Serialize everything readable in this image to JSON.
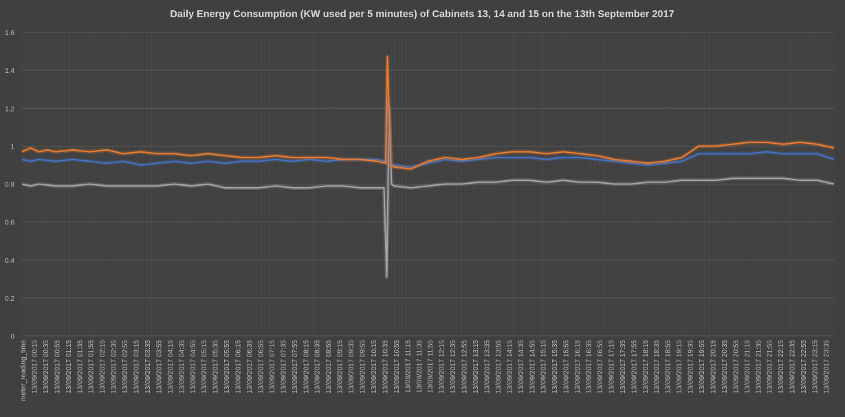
{
  "chart_data": {
    "type": "line",
    "title": "Daily Energy Consumption (KW used per 5 minutes) of Cabinets 13, 14 and 15 on the 13th September 2017",
    "xlabel": "",
    "ylabel": "",
    "ylim": [
      0,
      1.6
    ],
    "y_ticks": [
      "0",
      "0.2",
      "0.4",
      "0.6",
      "0.8",
      "1",
      "1.2",
      "1.4",
      "1.6"
    ],
    "grid": "on",
    "legend": "none",
    "x_first_label": "meter_reading_time",
    "x_tick_labels": [
      "13/09/2017 00:15",
      "13/09/2017 00:35",
      "13/09/2017 00:55",
      "13/09/2017 01:15",
      "13/09/2017 01:35",
      "13/09/2017 01:55",
      "13/09/2017 02:15",
      "13/09/2017 02:35",
      "13/09/2017 02:55",
      "13/09/2017 03:15",
      "13/09/2017 03:35",
      "13/09/2017 03:55",
      "13/09/2017 04:15",
      "13/09/2017 04:35",
      "13/09/2017 04:55",
      "13/09/2017 05:15",
      "13/09/2017 05:35",
      "13/09/2017 05:55",
      "13/09/2017 06:15",
      "13/09/2017 06:35",
      "13/09/2017 06:55",
      "13/09/2017 07:15",
      "13/09/2017 07:35",
      "13/09/2017 07:55",
      "13/09/2017 08:15",
      "13/09/2017 08:35",
      "13/09/2017 08:55",
      "13/09/2017 09:15",
      "13/09/2017 09:35",
      "13/09/2017 09:55",
      "13/09/2017 10:15",
      "13/09/2017 10:35",
      "13/09/2017 10:55",
      "13/09/2017 11:15",
      "13/09/2017 11:35",
      "13/09/2017 11:55",
      "13/09/2017 12:15",
      "13/09/2017 12:35",
      "13/09/2017 12:55",
      "13/09/2017 13:15",
      "13/09/2017 13:35",
      "13/09/2017 13:55",
      "13/09/2017 14:15",
      "13/09/2017 14:35",
      "13/09/2017 14:55",
      "13/09/2017 15:15",
      "13/09/2017 15:35",
      "13/09/2017 15:55",
      "13/09/2017 16:15",
      "13/09/2017 16:35",
      "13/09/2017 16:55",
      "13/09/2017 17:15",
      "13/09/2017 17:35",
      "13/09/2017 17:55",
      "13/09/2017 18:15",
      "13/09/2017 18:35",
      "13/09/2017 18:55",
      "13/09/2017 19:15",
      "13/09/2017 19:35",
      "13/09/2017 19:55",
      "13/09/2017 20:15",
      "13/09/2017 20:35",
      "13/09/2017 20:55",
      "13/09/2017 21:15",
      "13/09/2017 21:35",
      "13/09/2017 21:55",
      "13/09/2017 22:15",
      "13/09/2017 22:35",
      "13/09/2017 22:55",
      "13/09/2017 23:15",
      "13/09/2017 23:35"
    ],
    "x_time_hours": [
      0,
      24
    ],
    "series": [
      {
        "color": "#ED7D31",
        "points": [
          [
            0,
            0.97
          ],
          [
            0.25,
            0.99
          ],
          [
            0.5,
            0.97
          ],
          [
            0.75,
            0.98
          ],
          [
            1,
            0.97
          ],
          [
            1.5,
            0.98
          ],
          [
            2,
            0.97
          ],
          [
            2.5,
            0.98
          ],
          [
            3,
            0.96
          ],
          [
            3.5,
            0.97
          ],
          [
            4,
            0.96
          ],
          [
            4.5,
            0.96
          ],
          [
            5,
            0.95
          ],
          [
            5.5,
            0.96
          ],
          [
            6,
            0.95
          ],
          [
            6.5,
            0.94
          ],
          [
            7,
            0.94
          ],
          [
            7.5,
            0.95
          ],
          [
            8,
            0.94
          ],
          [
            8.5,
            0.94
          ],
          [
            9,
            0.94
          ],
          [
            9.5,
            0.93
          ],
          [
            10,
            0.93
          ],
          [
            10.5,
            0.92
          ],
          [
            10.75,
            0.91
          ],
          [
            10.8,
            1.47
          ],
          [
            10.9,
            0.9
          ],
          [
            11,
            0.89
          ],
          [
            11.5,
            0.88
          ],
          [
            12,
            0.92
          ],
          [
            12.5,
            0.94
          ],
          [
            13,
            0.93
          ],
          [
            13.5,
            0.94
          ],
          [
            14,
            0.96
          ],
          [
            14.5,
            0.97
          ],
          [
            15,
            0.97
          ],
          [
            15.5,
            0.96
          ],
          [
            16,
            0.97
          ],
          [
            16.5,
            0.96
          ],
          [
            17,
            0.95
          ],
          [
            17.5,
            0.93
          ],
          [
            18,
            0.92
          ],
          [
            18.5,
            0.91
          ],
          [
            19,
            0.92
          ],
          [
            19.5,
            0.94
          ],
          [
            20,
            1.0
          ],
          [
            20.5,
            1.0
          ],
          [
            21,
            1.01
          ],
          [
            21.5,
            1.02
          ],
          [
            22,
            1.02
          ],
          [
            22.5,
            1.01
          ],
          [
            23,
            1.02
          ],
          [
            23.5,
            1.01
          ],
          [
            24,
            0.99
          ]
        ]
      },
      {
        "color": "#4472C4",
        "points": [
          [
            0,
            0.93
          ],
          [
            0.25,
            0.92
          ],
          [
            0.5,
            0.93
          ],
          [
            1,
            0.92
          ],
          [
            1.5,
            0.93
          ],
          [
            2,
            0.92
          ],
          [
            2.5,
            0.91
          ],
          [
            3,
            0.92
          ],
          [
            3.5,
            0.9
          ],
          [
            4,
            0.91
          ],
          [
            4.5,
            0.92
          ],
          [
            5,
            0.91
          ],
          [
            5.5,
            0.92
          ],
          [
            6,
            0.91
          ],
          [
            6.5,
            0.92
          ],
          [
            7,
            0.92
          ],
          [
            7.5,
            0.93
          ],
          [
            8,
            0.92
          ],
          [
            8.5,
            0.93
          ],
          [
            9,
            0.92
          ],
          [
            9.5,
            0.93
          ],
          [
            10,
            0.93
          ],
          [
            10.5,
            0.93
          ],
          [
            10.75,
            0.92
          ],
          [
            10.8,
            1.25
          ],
          [
            10.9,
            0.9
          ],
          [
            11,
            0.9
          ],
          [
            11.5,
            0.89
          ],
          [
            12,
            0.91
          ],
          [
            12.5,
            0.93
          ],
          [
            13,
            0.92
          ],
          [
            13.5,
            0.93
          ],
          [
            14,
            0.94
          ],
          [
            14.5,
            0.94
          ],
          [
            15,
            0.94
          ],
          [
            15.5,
            0.93
          ],
          [
            16,
            0.94
          ],
          [
            16.5,
            0.94
          ],
          [
            17,
            0.93
          ],
          [
            17.5,
            0.92
          ],
          [
            18,
            0.91
          ],
          [
            18.5,
            0.9
          ],
          [
            19,
            0.91
          ],
          [
            19.5,
            0.92
          ],
          [
            20,
            0.96
          ],
          [
            20.5,
            0.96
          ],
          [
            21,
            0.96
          ],
          [
            21.5,
            0.96
          ],
          [
            22,
            0.97
          ],
          [
            22.5,
            0.96
          ],
          [
            23,
            0.96
          ],
          [
            23.5,
            0.96
          ],
          [
            24,
            0.93
          ]
        ]
      },
      {
        "color": "#A5A5A5",
        "points": [
          [
            0,
            0.8
          ],
          [
            0.25,
            0.79
          ],
          [
            0.5,
            0.8
          ],
          [
            1,
            0.79
          ],
          [
            1.5,
            0.79
          ],
          [
            2,
            0.8
          ],
          [
            2.5,
            0.79
          ],
          [
            3,
            0.79
          ],
          [
            3.5,
            0.79
          ],
          [
            4,
            0.79
          ],
          [
            4.5,
            0.8
          ],
          [
            5,
            0.79
          ],
          [
            5.5,
            0.8
          ],
          [
            6,
            0.78
          ],
          [
            6.5,
            0.78
          ],
          [
            7,
            0.78
          ],
          [
            7.5,
            0.79
          ],
          [
            8,
            0.78
          ],
          [
            8.5,
            0.78
          ],
          [
            9,
            0.79
          ],
          [
            9.5,
            0.79
          ],
          [
            10,
            0.78
          ],
          [
            10.5,
            0.78
          ],
          [
            10.7,
            0.78
          ],
          [
            10.78,
            0.31
          ],
          [
            10.85,
            1.2
          ],
          [
            10.92,
            0.8
          ],
          [
            11,
            0.79
          ],
          [
            11.5,
            0.78
          ],
          [
            12,
            0.79
          ],
          [
            12.5,
            0.8
          ],
          [
            13,
            0.8
          ],
          [
            13.5,
            0.81
          ],
          [
            14,
            0.81
          ],
          [
            14.5,
            0.82
          ],
          [
            15,
            0.82
          ],
          [
            15.5,
            0.81
          ],
          [
            16,
            0.82
          ],
          [
            16.5,
            0.81
          ],
          [
            17,
            0.81
          ],
          [
            17.5,
            0.8
          ],
          [
            18,
            0.8
          ],
          [
            18.5,
            0.81
          ],
          [
            19,
            0.81
          ],
          [
            19.5,
            0.82
          ],
          [
            20,
            0.82
          ],
          [
            20.5,
            0.82
          ],
          [
            21,
            0.83
          ],
          [
            21.5,
            0.83
          ],
          [
            22,
            0.83
          ],
          [
            22.5,
            0.83
          ],
          [
            23,
            0.82
          ],
          [
            23.5,
            0.82
          ],
          [
            24,
            0.8
          ]
        ]
      }
    ]
  }
}
